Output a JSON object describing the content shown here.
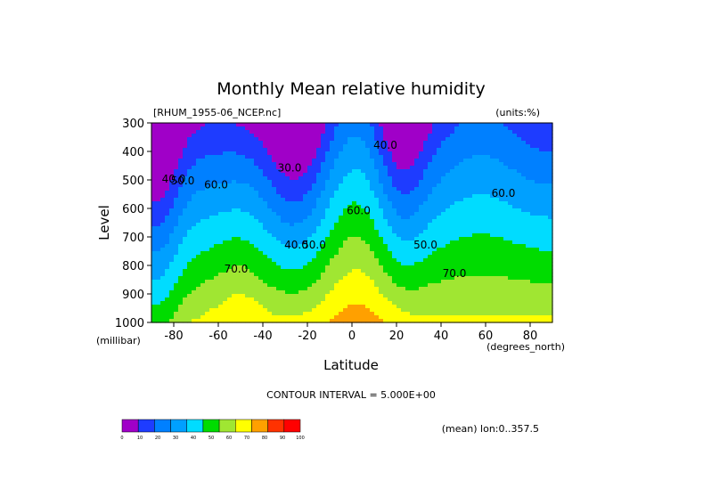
{
  "chart_data": {
    "type": "contour",
    "title": "Monthly Mean relative humidity",
    "dataset_label": "[RHUM_1955-06_NCEP.nc]",
    "units_label": "(units:%)",
    "xlabel": "Latitude",
    "x_units": "(degrees_north)",
    "ylabel": "Level",
    "y_units": "(millibar)",
    "xlim": [
      -90,
      90
    ],
    "ylim": [
      1000,
      300
    ],
    "x_ticks": [
      -80,
      -60,
      -40,
      -20,
      0,
      20,
      40,
      60,
      80
    ],
    "x_tick_labels": [
      "-80",
      "-60",
      "-40",
      "-20",
      "0",
      "20",
      "40",
      "60",
      "80"
    ],
    "y_ticks": [
      300,
      400,
      500,
      600,
      700,
      800,
      900,
      1000
    ],
    "y_tick_labels": [
      "300",
      "400",
      "500",
      "600",
      "700",
      "800",
      "900",
      "1000"
    ],
    "contour_interval_text": "CONTOUR INTERVAL = 5.000E+00",
    "footnote": "(mean) lon:0..357.5",
    "contour_labels": [
      {
        "text": "40.0",
        "lat": -80,
        "lev": 510
      },
      {
        "text": "50.0",
        "lat": -76,
        "lev": 515
      },
      {
        "text": "60.0",
        "lat": -61,
        "lev": 530
      },
      {
        "text": "30.0",
        "lat": -28,
        "lev": 470
      },
      {
        "text": "40.0",
        "lat": -25,
        "lev": 740
      },
      {
        "text": "50.0",
        "lat": -17,
        "lev": 740
      },
      {
        "text": "70.0",
        "lat": -52,
        "lev": 825
      },
      {
        "text": "60.0",
        "lat": 3,
        "lev": 620
      },
      {
        "text": "40.0",
        "lat": 15,
        "lev": 390
      },
      {
        "text": "50.0",
        "lat": 33,
        "lev": 740
      },
      {
        "text": "70.0",
        "lat": 46,
        "lev": 840
      },
      {
        "text": "60.0",
        "lat": 68,
        "lev": 560
      }
    ],
    "colorbar": {
      "levels": [
        0,
        10,
        20,
        30,
        40,
        50,
        60,
        70,
        80,
        90,
        100
      ],
      "tick_labels": [
        "0",
        "10",
        "20",
        "30",
        "40",
        "50",
        "60",
        "70",
        "80",
        "90",
        "100"
      ],
      "colors": [
        "#a000c8",
        "#1e3cff",
        "#0080ff",
        "#00a0ff",
        "#00dcff",
        "#00dc00",
        "#a0e632",
        "#ffff00",
        "#ffa000",
        "#ff3200",
        "#ff0000"
      ]
    }
  }
}
